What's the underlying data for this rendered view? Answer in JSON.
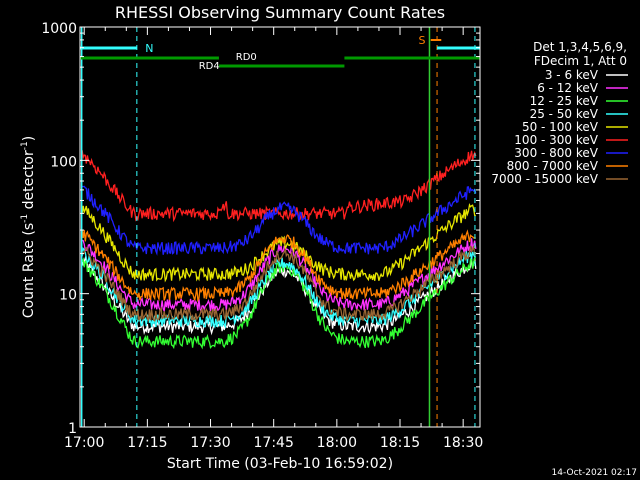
{
  "chart_data": {
    "type": "line",
    "title": "RHESSI Observing Summary Count Rates",
    "xlabel": "Start Time (03-Feb-10 16:59:02)",
    "ylabel_main": "Count Rate (s",
    "ylabel_sup1": "-1",
    "ylabel_mid": " detector",
    "ylabel_sup2": "-1",
    "ylabel_end": ")",
    "yscale": "log",
    "ylim": [
      1,
      1000
    ],
    "xlim_minutes": [
      -1.0,
      94.0
    ],
    "x_unit": "minutes after 17:00",
    "xticks": [
      {
        "value": 0,
        "label": "17:00"
      },
      {
        "value": 15,
        "label": "17:15"
      },
      {
        "value": 30,
        "label": "17:30"
      },
      {
        "value": 45,
        "label": "17:45"
      },
      {
        "value": 60,
        "label": "18:00"
      },
      {
        "value": 75,
        "label": "18:15"
      },
      {
        "value": 90,
        "label": "18:30"
      }
    ],
    "yticks": [
      {
        "value": 1,
        "label": "1"
      },
      {
        "value": 10,
        "label": "10"
      },
      {
        "value": 100,
        "label": "100"
      },
      {
        "value": 1000,
        "label": "1000"
      }
    ],
    "legend": {
      "position": "right",
      "header1": "Det 1,3,4,5,6,9,",
      "header2": "FDecim 1, Att 0"
    },
    "series": [
      {
        "name": "3 - 6 keV",
        "color": "#ffffff",
        "a": 17,
        "b": 5.7,
        "c": 15
      },
      {
        "name": "6 - 12 keV",
        "color": "#ff33ff",
        "a": 24,
        "b": 8.3,
        "c": 22
      },
      {
        "name": "12 - 25 keV",
        "color": "#33ff33",
        "a": 17,
        "b": 4.4,
        "c": 16
      },
      {
        "name": "25 - 50 keV",
        "color": "#33ffff",
        "a": 20,
        "b": 6.3,
        "c": 17
      },
      {
        "name": "50 - 100 keV",
        "color": "#e6e600",
        "a": 43,
        "b": 14,
        "c": 24
      },
      {
        "name": "100 - 300 keV",
        "color": "#ff2020",
        "a": 110,
        "b": 40,
        "c": 40
      },
      {
        "name": "300 - 800 keV",
        "color": "#2020ff",
        "a": 60,
        "b": 22,
        "c": 44
      },
      {
        "name": "800 - 7000 keV",
        "color": "#ff8000",
        "a": 28,
        "b": 10,
        "c": 26
      },
      {
        "name": "7000 - 15000 keV",
        "color": "#996633",
        "a": 21,
        "b": 7,
        "c": 20
      }
    ],
    "annotations": {
      "night_label": "N",
      "saa_label": "S",
      "rd0_label": "RD0",
      "rd4_label": "RD4",
      "night_color": "#33ffff",
      "saa_color": "#ff8000",
      "decim_color": "#009900",
      "flare_line_color": "#33cc33"
    },
    "timestamp": "14-Oct-2021 02:17"
  }
}
